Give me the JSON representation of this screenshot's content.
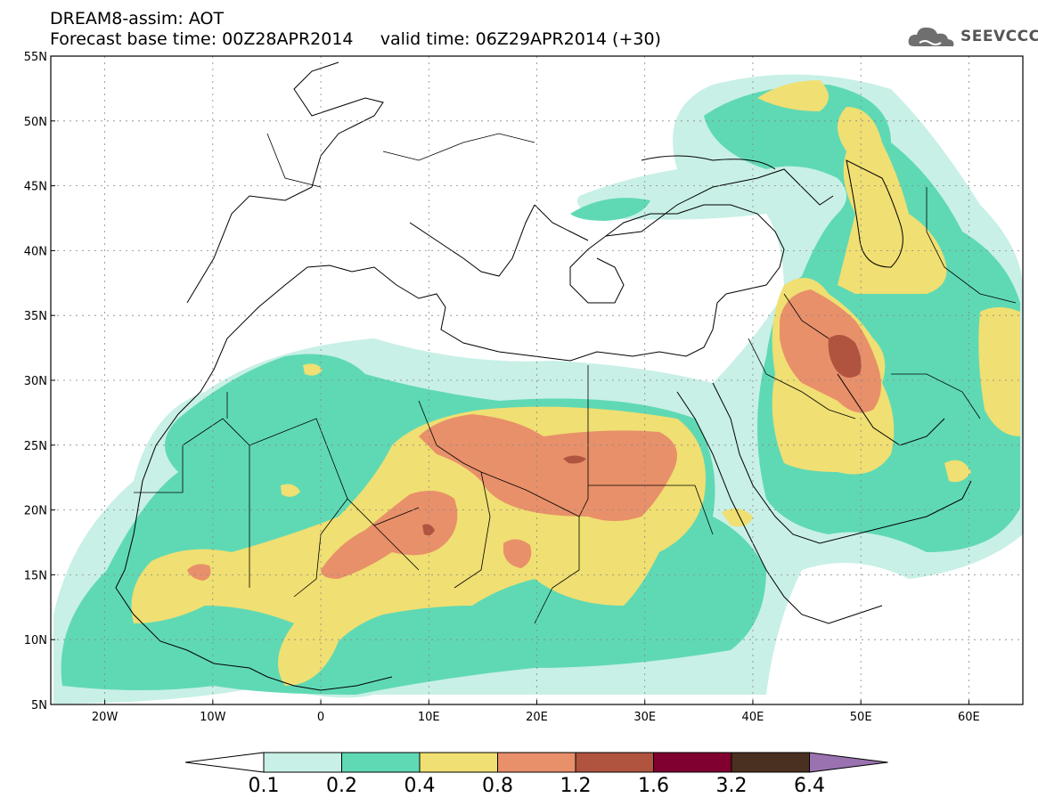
{
  "title": {
    "line1": "DREAM8-assim: AOT",
    "line2": "Forecast base time: 00Z28APR2014     valid time: 06Z29APR2014 (+30)"
  },
  "logo": {
    "text": "SEEVCCC",
    "icon": "cloud-icon"
  },
  "map": {
    "lon_range": [
      -25,
      65
    ],
    "lat_range": [
      5,
      55
    ],
    "lat_ticks": [
      "55N",
      "50N",
      "45N",
      "40N",
      "35N",
      "30N",
      "25N",
      "20N",
      "15N",
      "10N",
      "5N"
    ],
    "lon_ticks": [
      "20W",
      "10W",
      "0",
      "10E",
      "20E",
      "30E",
      "40E",
      "50E",
      "60E"
    ]
  },
  "colorbar": {
    "labels": [
      "0.1",
      "0.2",
      "0.4",
      "0.8",
      "1.2",
      "1.6",
      "3.2",
      "6.4"
    ],
    "colors": [
      "#c8f0e6",
      "#5fd9b4",
      "#f0df72",
      "#e8906a",
      "#b05440",
      "#800030",
      "#4a3020",
      "#9a72b0"
    ]
  }
}
